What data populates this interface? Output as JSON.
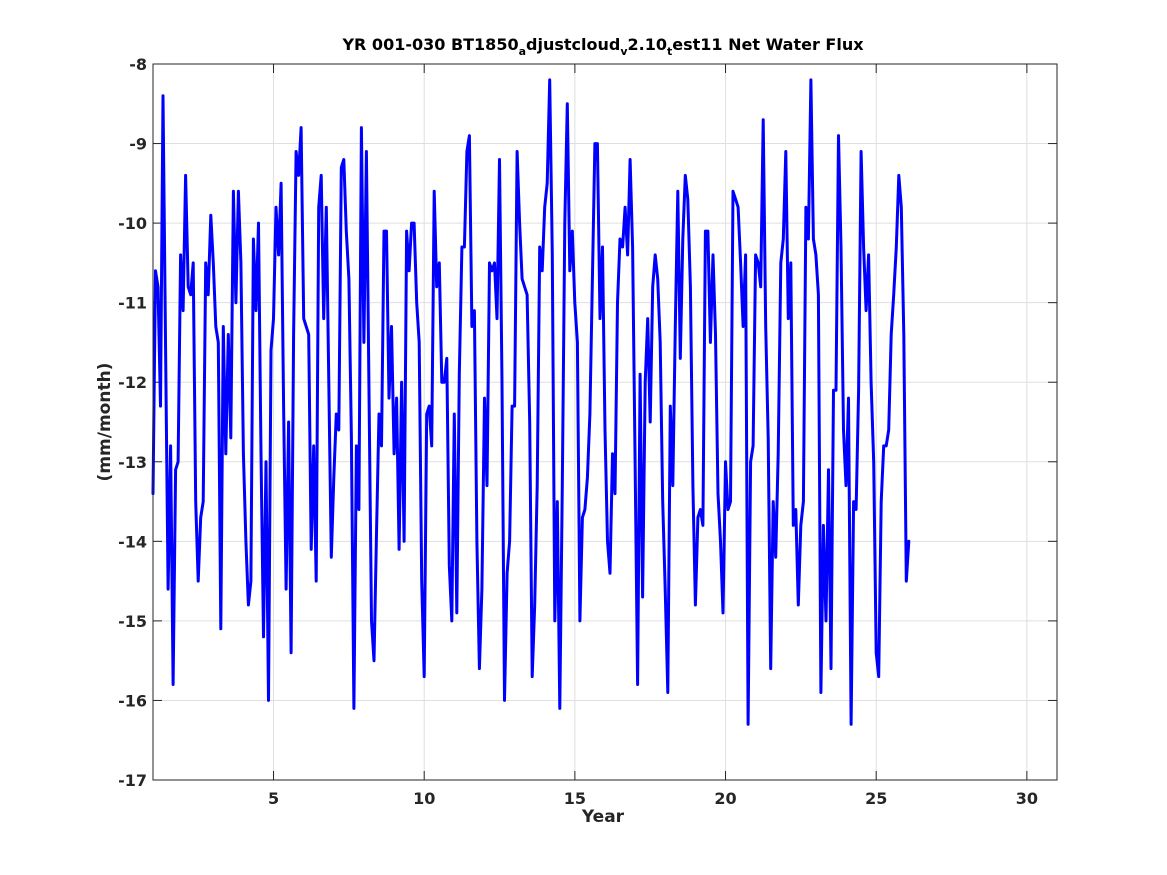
{
  "chart_data": {
    "type": "line",
    "title": {
      "parts": [
        {
          "text": "YR 001-030 BT1850",
          "sub": false
        },
        {
          "text": "a",
          "sub": true
        },
        {
          "text": "djustcloud",
          "sub": false
        },
        {
          "text": "v",
          "sub": true
        },
        {
          "text": "2.10",
          "sub": false
        },
        {
          "text": "t",
          "sub": true
        },
        {
          "text": "est11 Net Water Flux",
          "sub": false
        }
      ]
    },
    "xlabel": "Year",
    "ylabel": "(mm/month)",
    "xlim": [
      1,
      31
    ],
    "ylim": [
      -17,
      -8
    ],
    "xticks": [
      5,
      10,
      15,
      20,
      25,
      30
    ],
    "yticks": [
      -8,
      -9,
      -10,
      -11,
      -12,
      -13,
      -14,
      -15,
      -16,
      -17
    ],
    "grid": true,
    "color": "#0000ff",
    "series": [
      {
        "x_start": 1.0,
        "x_step": 0.08333,
        "values": [
          -13.4,
          -10.6,
          -10.8,
          -12.3,
          -8.4,
          -11.6,
          -14.6,
          -12.8,
          -15.8,
          -13.1,
          -13.0,
          -10.4,
          -11.1,
          -9.4,
          -10.8,
          -10.9,
          -10.5,
          -13.5,
          -14.5,
          -13.7,
          -13.5,
          -10.5,
          -10.9,
          -9.9,
          -10.5,
          -11.3,
          -11.5,
          -15.1,
          -11.3,
          -12.9,
          -11.4,
          -12.7,
          -9.6,
          -11.0,
          -9.6,
          -10.5,
          -12.9,
          -14.0,
          -14.8,
          -14.5,
          -10.2,
          -11.1,
          -10.0,
          -12.9,
          -15.2,
          -13.0,
          -16.0,
          -11.6,
          -11.2,
          -9.8,
          -10.4,
          -9.5,
          -12.3,
          -14.6,
          -12.5,
          -15.4,
          -11.4,
          -9.1,
          -9.4,
          -8.8,
          -11.2,
          -11.3,
          -11.4,
          -14.1,
          -12.8,
          -14.5,
          -9.8,
          -9.4,
          -11.2,
          -9.8,
          -12.0,
          -14.2,
          -13.2,
          -12.4,
          -12.6,
          -9.3,
          -9.2,
          -10.1,
          -10.7,
          -12.7,
          -16.1,
          -12.8,
          -13.6,
          -8.8,
          -11.5,
          -9.1,
          -12.0,
          -15.0,
          -15.5,
          -13.9,
          -12.4,
          -12.8,
          -10.1,
          -10.1,
          -12.2,
          -11.3,
          -12.9,
          -12.2,
          -14.1,
          -12.0,
          -14.0,
          -10.1,
          -10.6,
          -10.0,
          -10.0,
          -11.0,
          -11.5,
          -14.5,
          -15.7,
          -12.4,
          -12.3,
          -12.8,
          -9.6,
          -10.8,
          -10.5,
          -12.0,
          -12.0,
          -11.7,
          -14.3,
          -15.0,
          -12.4,
          -14.9,
          -11.9,
          -10.3,
          -10.3,
          -9.1,
          -8.9,
          -11.3,
          -11.1,
          -14.0,
          -15.6,
          -14.6,
          -12.2,
          -13.3,
          -10.5,
          -10.6,
          -10.5,
          -11.2,
          -9.2,
          -12.0,
          -16.0,
          -14.4,
          -14.0,
          -12.3,
          -12.3,
          -9.1,
          -10.0,
          -10.7,
          -10.8,
          -10.9,
          -12.5,
          -15.7,
          -14.8,
          -13.3,
          -10.3,
          -10.6,
          -9.8,
          -9.5,
          -8.2,
          -10.4,
          -15.0,
          -13.5,
          -16.1,
          -13.3,
          -10.0,
          -8.5,
          -10.6,
          -10.1,
          -11.0,
          -11.5,
          -15.0,
          -13.7,
          -13.6,
          -13.2,
          -12.4,
          -10.7,
          -9.0,
          -9.0,
          -11.2,
          -10.3,
          -12.6,
          -14.0,
          -14.4,
          -12.9,
          -13.4,
          -11.0,
          -10.2,
          -10.3,
          -9.8,
          -10.4,
          -9.2,
          -10.3,
          -13.0,
          -15.8,
          -11.9,
          -14.7,
          -12.0,
          -11.2,
          -12.5,
          -10.8,
          -10.4,
          -10.7,
          -11.5,
          -13.5,
          -14.6,
          -15.9,
          -12.3,
          -13.3,
          -11.3,
          -9.6,
          -11.7,
          -10.2,
          -9.4,
          -9.7,
          -10.8,
          -13.3,
          -14.8,
          -13.7,
          -13.6,
          -13.8,
          -10.1,
          -10.1,
          -11.5,
          -10.4,
          -11.4,
          -13.4,
          -14.0,
          -14.9,
          -13.0,
          -13.6,
          -13.5,
          -9.6,
          -9.7,
          -9.8,
          -10.5,
          -11.3,
          -10.4,
          -16.3,
          -13.0,
          -12.8,
          -10.4,
          -10.5,
          -10.8,
          -8.7,
          -11.3,
          -12.7,
          -15.6,
          -13.5,
          -14.2,
          -12.9,
          -10.5,
          -10.2,
          -9.1,
          -11.2,
          -10.5,
          -13.8,
          -13.6,
          -14.8,
          -13.8,
          -13.5,
          -9.8,
          -10.2,
          -8.2,
          -10.2,
          -10.4,
          -10.9,
          -15.9,
          -13.8,
          -15.0,
          -13.1,
          -15.6,
          -12.1,
          -12.1,
          -8.9,
          -10.3,
          -12.6,
          -13.3,
          -12.2,
          -16.3,
          -13.5,
          -13.6,
          -12.1,
          -9.1,
          -10.3,
          -11.1,
          -10.4,
          -12.0,
          -13.0,
          -15.4,
          -15.7,
          -13.5,
          -12.8,
          -12.8,
          -12.6,
          -11.4,
          -10.9,
          -10.3,
          -9.4,
          -9.8,
          -11.4,
          -14.5,
          -14.0
        ]
      }
    ]
  }
}
